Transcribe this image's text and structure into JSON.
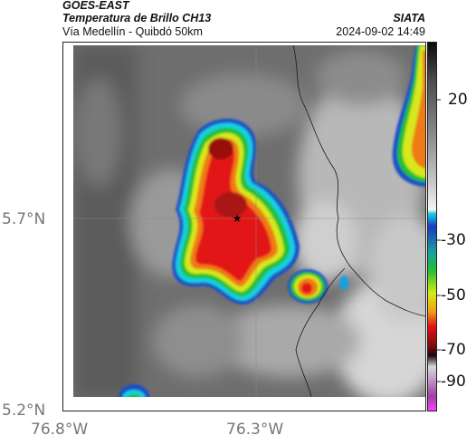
{
  "header": {
    "satellite": "GOES-EAST",
    "product": "Temperatura de Brillo CH13",
    "region": "Vía Medellín - Quibdó 50km",
    "org": "SIATA",
    "datetime": "2024-09-02 14:49"
  },
  "axes": {
    "lat_labels": [
      "5.7°N",
      "5.2°N"
    ],
    "lon_labels": [
      "76.8°W",
      "76.3°W"
    ]
  },
  "colorbar": {
    "ticks": [
      "20",
      "-30",
      "-50",
      "-70",
      "-90"
    ]
  },
  "marker": {
    "symbol": "★"
  }
}
